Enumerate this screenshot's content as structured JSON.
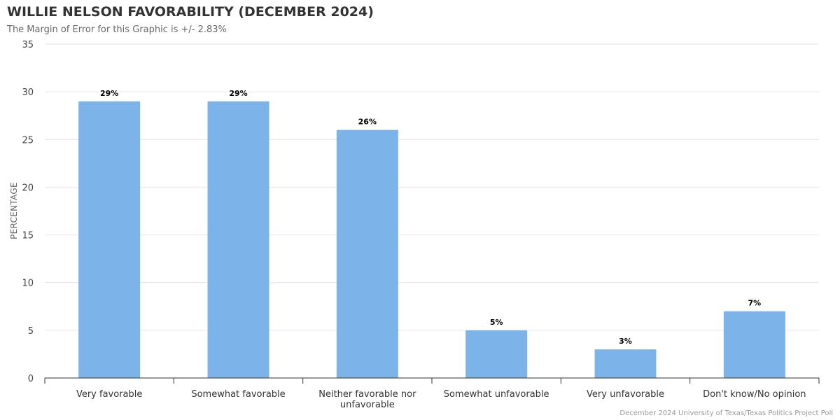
{
  "chart_data": {
    "type": "bar",
    "title": "WILLIE NELSON FAVORABILITY (DECEMBER 2024)",
    "subtitle": "The Margin of Error for this Graphic is +/- 2.83%",
    "xlabel": "",
    "ylabel": "PERCENTAGE",
    "categories": [
      [
        "Very favorable"
      ],
      [
        "Somewhat favorable"
      ],
      [
        "Neither favorable nor",
        "unfavorable"
      ],
      [
        "Somewhat unfavorable"
      ],
      [
        "Very unfavorable"
      ],
      [
        "Don't know/No opinion"
      ]
    ],
    "values": [
      29,
      29,
      26,
      5,
      3,
      7
    ],
    "data_labels": [
      "29%",
      "29%",
      "26%",
      "5%",
      "3%",
      "7%"
    ],
    "ylim": [
      0,
      35
    ],
    "yticks": [
      0,
      5,
      10,
      15,
      20,
      25,
      30,
      35
    ],
    "grid": true,
    "bar_color": "#7cb4ea",
    "source": "December 2024 University of Texas/Texas Politics Project Poll"
  }
}
